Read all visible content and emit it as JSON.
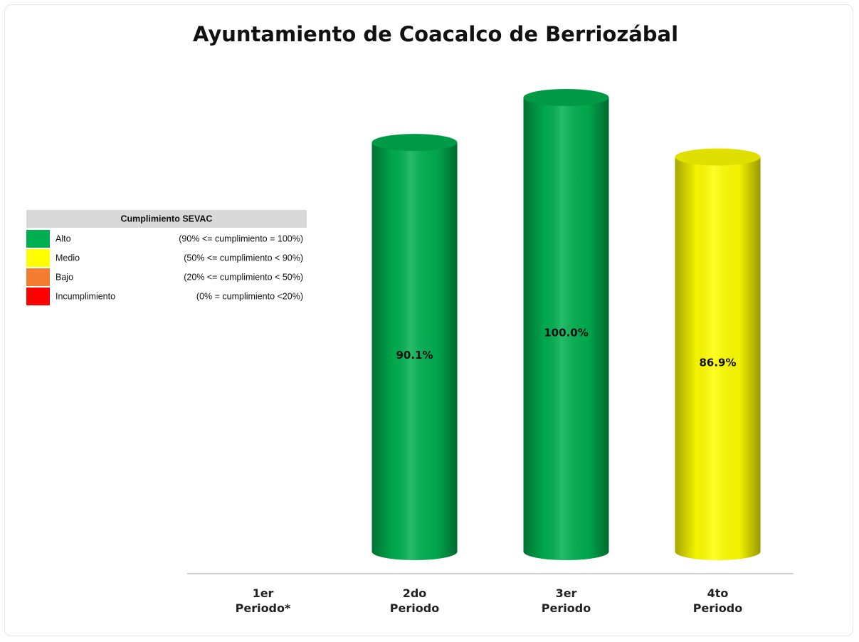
{
  "chart_data": {
    "type": "bar",
    "title": "Ayuntamiento de Coacalco de Berriozábal",
    "categories": [
      "1er Periodo*",
      "2do Periodo",
      "3er Periodo",
      "4to Periodo"
    ],
    "values": [
      null,
      90.1,
      100,
      86.9
    ],
    "value_labels": [
      null,
      "90.1%",
      "100.0%",
      "86.9%"
    ],
    "colors": [
      null,
      "#00b050",
      "#00b050",
      "#ffff00"
    ],
    "ylim": [
      0,
      100
    ],
    "legend_table": {
      "title": "Cumplimiento SEVAC",
      "rows": [
        {
          "label": "Alto",
          "range": "(90% <= cumplimiento = 100%)",
          "color": "#00b050"
        },
        {
          "label": "Medio",
          "range": "(50% <= cumplimiento < 90%)",
          "color": "#ffff00"
        },
        {
          "label": "Bajo",
          "range": "(20% <= cumplimiento < 50%)",
          "color": "#f47c30"
        },
        {
          "label": "Incumplimiento",
          "range": "(0% = cumplimiento <20%)",
          "color": "#ff0000"
        }
      ]
    }
  }
}
